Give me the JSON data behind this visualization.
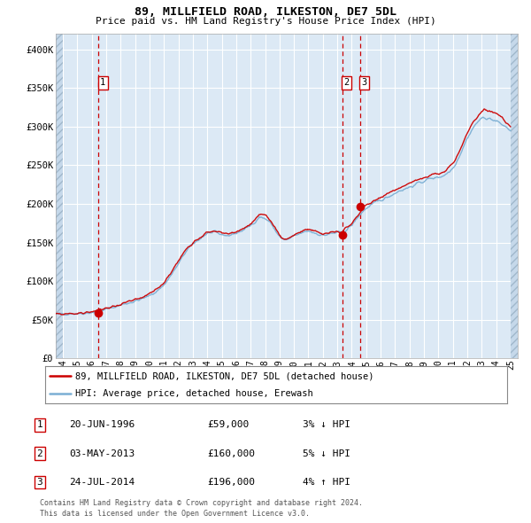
{
  "title": "89, MILLFIELD ROAD, ILKESTON, DE7 5DL",
  "subtitle": "Price paid vs. HM Land Registry's House Price Index (HPI)",
  "legend_line1": "89, MILLFIELD ROAD, ILKESTON, DE7 5DL (detached house)",
  "legend_line2": "HPI: Average price, detached house, Erewash",
  "footnote1": "Contains HM Land Registry data © Crown copyright and database right 2024.",
  "footnote2": "This data is licensed under the Open Government Licence v3.0.",
  "table_rows": [
    {
      "num": "1",
      "date": "20-JUN-1996",
      "price": "£59,000",
      "hpi": "3% ↓ HPI"
    },
    {
      "num": "2",
      "date": "03-MAY-2013",
      "price": "£160,000",
      "hpi": "5% ↓ HPI"
    },
    {
      "num": "3",
      "date": "24-JUL-2014",
      "price": "£196,000",
      "hpi": "4% ↑ HPI"
    }
  ],
  "sale_dates_num": [
    1996.47,
    2013.34,
    2014.56
  ],
  "sale_prices": [
    59000,
    160000,
    196000
  ],
  "vline_dates": [
    1996.47,
    2013.34,
    2014.56
  ],
  "hpi_color": "#7bafd4",
  "price_color": "#cc0000",
  "bg_color": "#dce9f5",
  "hatch_color": "#c5d8ea",
  "grid_color": "#ffffff",
  "vline_color": "#cc0000",
  "ylim": [
    0,
    420000
  ],
  "yticks": [
    0,
    50000,
    100000,
    150000,
    200000,
    250000,
    300000,
    350000,
    400000
  ],
  "ytick_labels": [
    "£0",
    "£50K",
    "£100K",
    "£150K",
    "£200K",
    "£250K",
    "£300K",
    "£350K",
    "£400K"
  ],
  "xlim_start": 1993.5,
  "xlim_end": 2025.5,
  "xtick_years": [
    1994,
    1995,
    1996,
    1997,
    1998,
    1999,
    2000,
    2001,
    2002,
    2003,
    2004,
    2005,
    2006,
    2007,
    2008,
    2009,
    2010,
    2011,
    2012,
    2013,
    2014,
    2015,
    2016,
    2017,
    2018,
    2019,
    2020,
    2021,
    2022,
    2023,
    2024,
    2025
  ],
  "hpi_anchors_x": [
    1993.5,
    1994.0,
    1994.5,
    1995.0,
    1995.5,
    1996.0,
    1996.5,
    1997.0,
    1997.5,
    1998.0,
    1998.5,
    1999.0,
    1999.5,
    2000.0,
    2000.5,
    2001.0,
    2001.5,
    2002.0,
    2002.5,
    2003.0,
    2003.5,
    2004.0,
    2004.5,
    2005.0,
    2005.5,
    2006.0,
    2006.5,
    2007.0,
    2007.3,
    2007.6,
    2008.0,
    2008.4,
    2008.8,
    2009.1,
    2009.5,
    2010.0,
    2010.5,
    2011.0,
    2011.5,
    2012.0,
    2012.5,
    2013.0,
    2013.3,
    2013.5,
    2014.0,
    2014.4,
    2014.8,
    2015.3,
    2015.8,
    2016.3,
    2016.8,
    2017.3,
    2017.8,
    2018.3,
    2018.8,
    2019.3,
    2019.8,
    2020.3,
    2020.8,
    2021.2,
    2021.6,
    2022.0,
    2022.4,
    2022.8,
    2023.2,
    2023.6,
    2024.0,
    2024.4,
    2024.8,
    2025.0
  ],
  "hpi_anchors_y": [
    57000,
    57500,
    58000,
    57800,
    58500,
    59500,
    61000,
    63500,
    66000,
    69000,
    71500,
    74000,
    77000,
    81000,
    87000,
    95000,
    108000,
    122000,
    138000,
    148000,
    155000,
    162000,
    163000,
    160000,
    159000,
    162000,
    166000,
    172000,
    177000,
    183000,
    181000,
    175000,
    163000,
    155000,
    153000,
    158000,
    162000,
    165000,
    162000,
    159000,
    161000,
    163000,
    162000,
    165000,
    172000,
    182000,
    191000,
    198000,
    203000,
    207000,
    212000,
    217000,
    220000,
    224000,
    228000,
    232000,
    234000,
    236000,
    242000,
    252000,
    268000,
    285000,
    298000,
    308000,
    312000,
    310000,
    307000,
    303000,
    298000,
    295000
  ],
  "price_anchors_x": [
    1993.5,
    1994.0,
    1994.5,
    1995.0,
    1995.5,
    1996.0,
    1996.5,
    1997.0,
    1997.5,
    1998.0,
    1998.5,
    1999.0,
    1999.5,
    2000.0,
    2000.5,
    2001.0,
    2001.5,
    2002.0,
    2002.5,
    2003.0,
    2003.5,
    2004.0,
    2004.5,
    2005.0,
    2005.5,
    2006.0,
    2006.5,
    2007.0,
    2007.3,
    2007.6,
    2008.0,
    2008.4,
    2008.8,
    2009.1,
    2009.5,
    2010.0,
    2010.5,
    2011.0,
    2011.5,
    2012.0,
    2012.5,
    2013.0,
    2013.3,
    2013.5,
    2014.0,
    2014.4,
    2014.8,
    2015.3,
    2015.8,
    2016.3,
    2016.8,
    2017.3,
    2017.8,
    2018.3,
    2018.8,
    2019.3,
    2019.8,
    2020.3,
    2020.8,
    2021.2,
    2021.6,
    2022.0,
    2022.4,
    2022.8,
    2023.2,
    2023.6,
    2024.0,
    2024.4,
    2024.8,
    2025.0
  ],
  "price_anchors_y": [
    57000,
    57000,
    58500,
    57500,
    59000,
    60500,
    62000,
    65000,
    67000,
    70000,
    73000,
    75000,
    78500,
    83000,
    90000,
    98000,
    112000,
    126000,
    141000,
    150000,
    157000,
    163000,
    165000,
    162000,
    161000,
    164000,
    168000,
    174000,
    179000,
    186000,
    184000,
    178000,
    166000,
    157000,
    154000,
    160000,
    164000,
    167000,
    164000,
    161000,
    163000,
    165000,
    160000,
    167000,
    174000,
    184000,
    196000,
    201000,
    207000,
    211000,
    216000,
    221000,
    225000,
    229000,
    232000,
    236000,
    238000,
    240000,
    248000,
    258000,
    274000,
    291000,
    305000,
    316000,
    322000,
    320000,
    318000,
    312000,
    304000,
    300000
  ]
}
